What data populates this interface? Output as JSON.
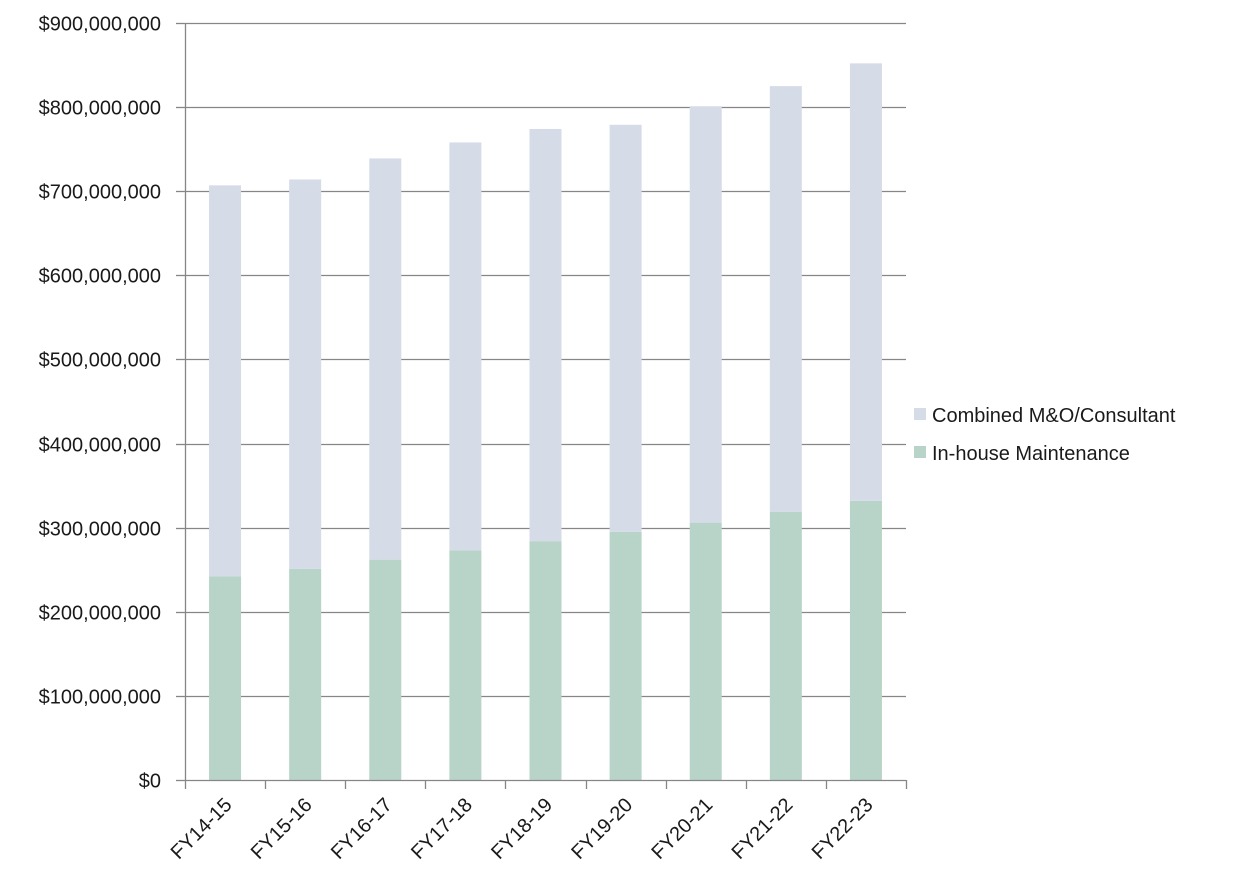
{
  "chart_data": {
    "type": "bar",
    "stacked": true,
    "title": "",
    "xlabel": "",
    "ylabel": "",
    "categories": [
      "FY14-15",
      "FY15-16",
      "FY16-17",
      "FY17-18",
      "FY18-19",
      "FY19-20",
      "FY20-21",
      "FY21-22",
      "FY22-23"
    ],
    "series": [
      {
        "name": "In-house Maintenance",
        "color": "#b8d4c8",
        "values": [
          242000000,
          251000000,
          262000000,
          273000000,
          284000000,
          295000000,
          306000000,
          319000000,
          332000000
        ]
      },
      {
        "name": "Combined M&O/Consultant",
        "color": "#d6dbe8",
        "values": [
          465000000,
          463000000,
          477000000,
          485000000,
          490000000,
          484000000,
          495000000,
          506000000,
          520000000
        ]
      }
    ],
    "ylim": [
      0,
      900000000
    ],
    "yticks": [
      0,
      100000000,
      200000000,
      300000000,
      400000000,
      500000000,
      600000000,
      700000000,
      800000000,
      900000000
    ],
    "ytick_labels": [
      "$0",
      "$100,000,000",
      "$200,000,000",
      "$300,000,000",
      "$400,000,000",
      "$500,000,000",
      "$600,000,000",
      "$700,000,000",
      "$800,000,000",
      "$900,000,000"
    ],
    "grid": true,
    "legend": {
      "position": "right",
      "entries": [
        "Combined M&O/Consultant",
        "In-house Maintenance"
      ]
    },
    "gridline_color": "#868686",
    "axis_color": "#868686"
  }
}
